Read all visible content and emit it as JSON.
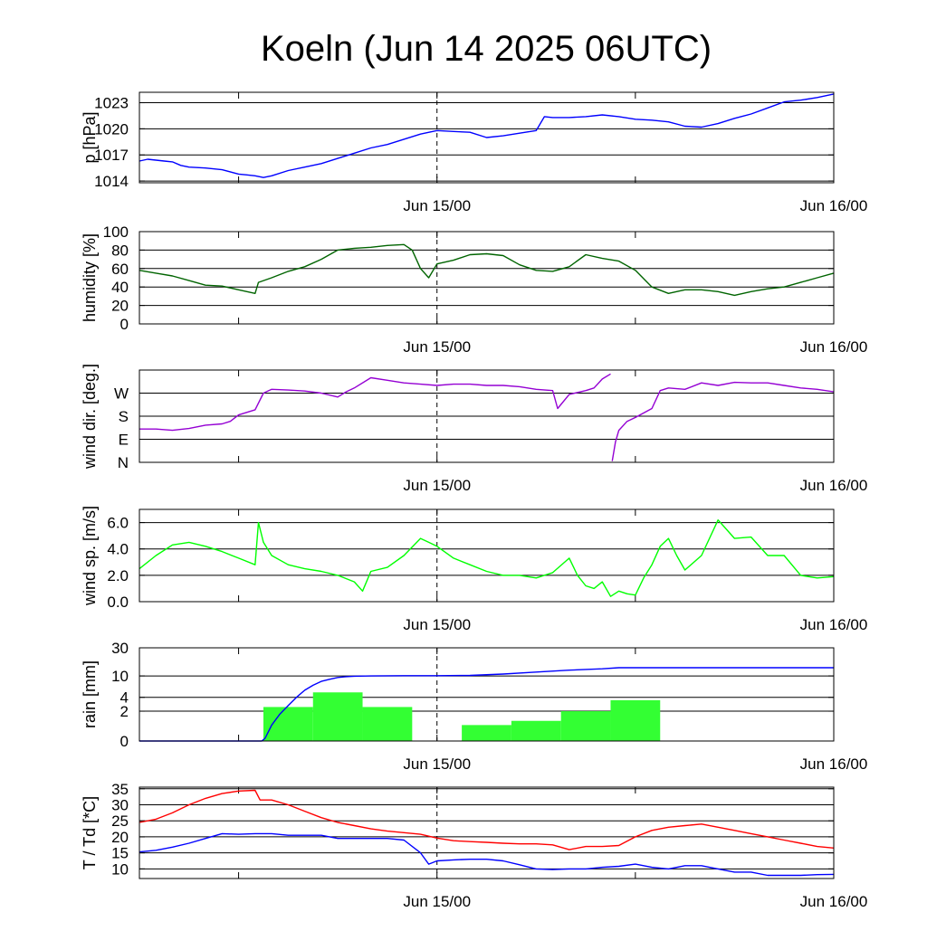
{
  "title": "Koeln (Jun 14 2025 06UTC)",
  "colors": {
    "pressure": "#0000ff",
    "humidity": "#006400",
    "wind_dir": "#9400d3",
    "wind_speed": "#00ff00",
    "rain_bars": "#33ff33",
    "rain_sum": "#0000ff",
    "temperature": "#ff0000",
    "dewpoint": "#0000ff"
  },
  "chart_data": [
    {
      "id": "pressure",
      "type": "line",
      "ylabel": "p [hPa]",
      "yticks": [
        1014,
        1017,
        1020,
        1023
      ],
      "ylim": [
        1013.8,
        1024.2
      ],
      "xlim": [
        0,
        42
      ],
      "xtick_labels": [
        {
          "x": 18,
          "label": "Jun 15/00"
        },
        {
          "x": 42,
          "label": "Jun 16/00"
        }
      ],
      "xtick_positions": [
        6,
        18,
        30,
        42
      ],
      "series": [
        {
          "x": [
            0,
            0.5,
            1,
            1.5,
            2,
            2.5,
            3,
            4,
            5,
            6,
            6.5,
            7,
            7.5,
            8,
            9,
            10,
            11,
            12,
            13,
            14,
            15,
            16,
            17,
            18,
            19,
            20,
            21,
            22,
            23,
            24,
            24.5,
            25,
            26,
            27,
            28,
            29,
            30,
            31,
            32,
            33,
            34,
            35,
            36,
            37,
            38,
            39,
            40,
            41,
            42
          ],
          "values": [
            1016.3,
            1016.5,
            1016.4,
            1016.3,
            1016.2,
            1015.8,
            1015.6,
            1015.5,
            1015.3,
            1014.8,
            1014.7,
            1014.6,
            1014.4,
            1014.6,
            1015.2,
            1015.6,
            1016.0,
            1016.6,
            1017.2,
            1017.8,
            1018.2,
            1018.8,
            1019.4,
            1019.8,
            1019.7,
            1019.6,
            1019.0,
            1019.2,
            1019.5,
            1019.8,
            1021.4,
            1021.3,
            1021.3,
            1021.4,
            1021.6,
            1021.4,
            1021.1,
            1021.0,
            1020.8,
            1020.3,
            1020.2,
            1020.6,
            1021.2,
            1021.7,
            1022.4,
            1023.1,
            1023.3,
            1023.6,
            1024.0
          ]
        }
      ],
      "grid": true
    },
    {
      "id": "humidity",
      "type": "line",
      "ylabel": "humidity [%]",
      "yticks": [
        0,
        20,
        40,
        60,
        80,
        100
      ],
      "ylim": [
        0,
        100
      ],
      "xlim": [
        0,
        42
      ],
      "xtick_labels": [
        {
          "x": 18,
          "label": "Jun 15/00"
        },
        {
          "x": 42,
          "label": "Jun 16/00"
        }
      ],
      "xtick_positions": [
        6,
        18,
        30,
        42
      ],
      "series": [
        {
          "x": [
            0,
            1,
            2,
            3,
            4,
            5,
            6,
            7,
            7.2,
            8,
            9,
            10,
            11,
            12,
            13,
            14,
            15,
            16,
            16.5,
            17,
            17.5,
            18,
            19,
            20,
            21,
            22,
            23,
            24,
            25,
            26,
            27,
            28,
            29,
            30,
            31,
            32,
            33,
            34,
            35,
            36,
            37,
            38,
            39,
            40,
            41,
            42
          ],
          "values": [
            58,
            55,
            52,
            47,
            42,
            41,
            37,
            33,
            45,
            50,
            57,
            62,
            70,
            80,
            82,
            83,
            85,
            86,
            80,
            60,
            50,
            65,
            69,
            75,
            76,
            74,
            64,
            58,
            57,
            62,
            75,
            71,
            68,
            58,
            40,
            33,
            37,
            37,
            35,
            31,
            35,
            38,
            40,
            45,
            50,
            55
          ]
        }
      ],
      "grid": true
    },
    {
      "id": "wind_dir",
      "type": "line",
      "ylabel": "wind dir. [deg.]",
      "yticks": [
        0,
        90,
        180,
        270
      ],
      "ytick_labels": [
        "N",
        "E",
        "S",
        "W"
      ],
      "ylim": [
        0,
        360
      ],
      "xlim": [
        0,
        42
      ],
      "xtick_labels": [
        {
          "x": 18,
          "label": "Jun 15/00"
        },
        {
          "x": 42,
          "label": "Jun 16/00"
        }
      ],
      "xtick_positions": [
        6,
        18,
        30,
        42
      ],
      "series": [
        {
          "x": [
            0,
            1,
            2,
            3,
            4,
            5,
            5.5,
            6,
            7,
            7.5,
            8,
            9,
            10,
            11,
            12,
            12.5,
            13,
            14,
            15,
            16,
            17,
            18,
            19,
            20,
            21,
            22,
            23,
            24,
            25,
            25.3,
            26,
            27,
            27.5,
            28,
            28.5
          ],
          "values": [
            130,
            130,
            125,
            132,
            145,
            150,
            160,
            185,
            205,
            270,
            285,
            282,
            278,
            270,
            255,
            275,
            290,
            330,
            320,
            310,
            305,
            300,
            305,
            305,
            300,
            300,
            295,
            285,
            280,
            210,
            265,
            280,
            290,
            325,
            345
          ]
        },
        {
          "x": [
            28.6,
            28.8,
            29,
            29.5,
            30,
            31,
            31.5,
            32,
            33,
            34,
            35,
            36,
            37,
            38,
            39,
            40,
            41,
            42
          ],
          "values": [
            5,
            80,
            125,
            160,
            175,
            210,
            280,
            290,
            285,
            310,
            300,
            312,
            310,
            310,
            300,
            290,
            285,
            275
          ]
        }
      ],
      "grid": true
    },
    {
      "id": "wind_speed",
      "type": "line",
      "ylabel": "wind sp. [m/s]",
      "yticks": [
        0.0,
        2.0,
        4.0,
        6.0
      ],
      "ylim": [
        0,
        7
      ],
      "xlim": [
        0,
        42
      ],
      "xtick_labels": [
        {
          "x": 18,
          "label": "Jun 15/00"
        },
        {
          "x": 42,
          "label": "Jun 16/00"
        }
      ],
      "xtick_positions": [
        6,
        18,
        30,
        42
      ],
      "series": [
        {
          "x": [
            0,
            1,
            2,
            3,
            4,
            5,
            6,
            7,
            7.2,
            7.5,
            8,
            9,
            10,
            11,
            12,
            13,
            13.5,
            14,
            15,
            16,
            17,
            17.5,
            18,
            19,
            20,
            21,
            22,
            23,
            24,
            25,
            26,
            26.5,
            27,
            27.5,
            28,
            28.5,
            29,
            29.5,
            30,
            30.5,
            31,
            31.5,
            32,
            32.5,
            33,
            34,
            35,
            35.5,
            36,
            37,
            38,
            39,
            40,
            41,
            42
          ],
          "values": [
            2.5,
            3.5,
            4.3,
            4.5,
            4.2,
            3.8,
            3.3,
            2.8,
            6.0,
            4.5,
            3.5,
            2.8,
            2.5,
            2.3,
            2.0,
            1.5,
            0.8,
            2.3,
            2.6,
            3.5,
            4.8,
            4.5,
            4.2,
            3.3,
            2.8,
            2.3,
            2.0,
            2.0,
            1.8,
            2.2,
            3.3,
            2.0,
            1.2,
            1.0,
            1.5,
            0.4,
            0.8,
            0.6,
            0.5,
            1.8,
            2.8,
            4.2,
            4.8,
            3.5,
            2.4,
            3.5,
            6.2,
            5.5,
            4.8,
            4.9,
            3.5,
            3.5,
            2.0,
            1.8,
            1.9
          ]
        }
      ],
      "grid": true
    },
    {
      "id": "rain",
      "type": "bar",
      "ylabel": "rain [mm]",
      "yticks": [
        0,
        2,
        4,
        10,
        30
      ],
      "ylim": [
        0,
        30
      ],
      "yscale": "log",
      "xlim": [
        0,
        42
      ],
      "xtick_labels": [
        {
          "x": 18,
          "label": "Jun 15/00"
        },
        {
          "x": 42,
          "label": "Jun 16/00"
        }
      ],
      "xtick_positions": [
        6,
        18,
        30,
        42
      ],
      "bars": [
        {
          "x0": 7.5,
          "x1": 10.5,
          "value": 2.5
        },
        {
          "x0": 10.5,
          "x1": 13.5,
          "value": 5.0
        },
        {
          "x0": 13.5,
          "x1": 16.5,
          "value": 2.5
        },
        {
          "x0": 19.5,
          "x1": 22.5,
          "value": 0.8
        },
        {
          "x0": 22.5,
          "x1": 25.5,
          "value": 1.1
        },
        {
          "x0": 25.5,
          "x1": 28.5,
          "value": 2.0
        },
        {
          "x0": 28.5,
          "x1": 31.5,
          "value": 3.5
        }
      ],
      "series": [
        {
          "x": [
            0,
            7.4,
            7.6,
            8,
            8.5,
            9,
            9.5,
            10,
            10.5,
            11,
            11.5,
            12,
            12.5,
            13,
            14,
            16,
            18,
            20,
            22,
            24,
            26,
            28,
            29,
            30,
            32,
            34,
            36,
            38,
            40,
            42
          ],
          "values": [
            0,
            0,
            0.1,
            0.8,
            1.7,
            2.7,
            4.0,
            5.5,
            6.8,
            8.0,
            8.7,
            9.4,
            9.7,
            9.9,
            10.0,
            10.1,
            10.1,
            10.2,
            10.8,
            11.7,
            12.6,
            13.3,
            13.9,
            13.9,
            13.9,
            13.9,
            13.9,
            13.9,
            13.9,
            13.9
          ]
        }
      ],
      "grid": true
    },
    {
      "id": "temperature",
      "type": "line",
      "ylabel": "T / Td [*C]",
      "yticks": [
        10,
        15,
        20,
        25,
        30,
        35
      ],
      "ylim": [
        7,
        35.5
      ],
      "xlim": [
        0,
        42
      ],
      "xtick_labels": [
        {
          "x": 18,
          "label": "Jun 15/00"
        },
        {
          "x": 42,
          "label": "Jun 16/00"
        }
      ],
      "xtick_positions": [
        6,
        18,
        30,
        42
      ],
      "series": [
        {
          "x": [
            0,
            1,
            2,
            3,
            4,
            5,
            6,
            7,
            7.3,
            8,
            9,
            10,
            11,
            12,
            13,
            14,
            15,
            16,
            17,
            18,
            19,
            20,
            21,
            22,
            23,
            24,
            25,
            26,
            27,
            28,
            29,
            30,
            31,
            32,
            33,
            34,
            35,
            36,
            37,
            38,
            39,
            40,
            41,
            42
          ],
          "values": [
            24.5,
            25.5,
            27.5,
            30,
            32,
            33.5,
            34.3,
            34.5,
            31.5,
            31.5,
            30,
            28,
            26,
            24.5,
            23.5,
            22.5,
            21.8,
            21.3,
            20.8,
            19.6,
            18.8,
            18.5,
            18.3,
            18.0,
            17.8,
            17.8,
            17.5,
            16.0,
            17.0,
            17.0,
            17.3,
            20.0,
            22.0,
            23.0,
            23.5,
            24.0,
            23.0,
            22.0,
            21.0,
            20.0,
            19.0,
            18.0,
            17.0,
            16.5
          ]
        },
        {
          "x": [
            0,
            1,
            2,
            3,
            4,
            5,
            6,
            7,
            8,
            9,
            10,
            11,
            12,
            13,
            14,
            15,
            16,
            17,
            17.5,
            18,
            19,
            20,
            21,
            22,
            23,
            24,
            25,
            26,
            27,
            28,
            29,
            30,
            31,
            32,
            33,
            34,
            35,
            36,
            37,
            38,
            39,
            40,
            41,
            42
          ],
          "values": [
            15.3,
            15.8,
            16.8,
            18,
            19.5,
            21,
            20.8,
            21,
            21,
            20.5,
            20.5,
            20.5,
            19.5,
            19.5,
            19.5,
            19.5,
            19.0,
            15.0,
            11.5,
            12.5,
            12.8,
            13.0,
            13.0,
            12.5,
            11.3,
            10.0,
            9.8,
            10.0,
            10.0,
            10.5,
            10.8,
            11.5,
            10.5,
            10.0,
            11.0,
            11.0,
            10.0,
            9.0,
            9.0,
            8.0,
            8.0,
            8.0,
            8.2,
            8.3
          ]
        }
      ],
      "grid": true
    }
  ]
}
